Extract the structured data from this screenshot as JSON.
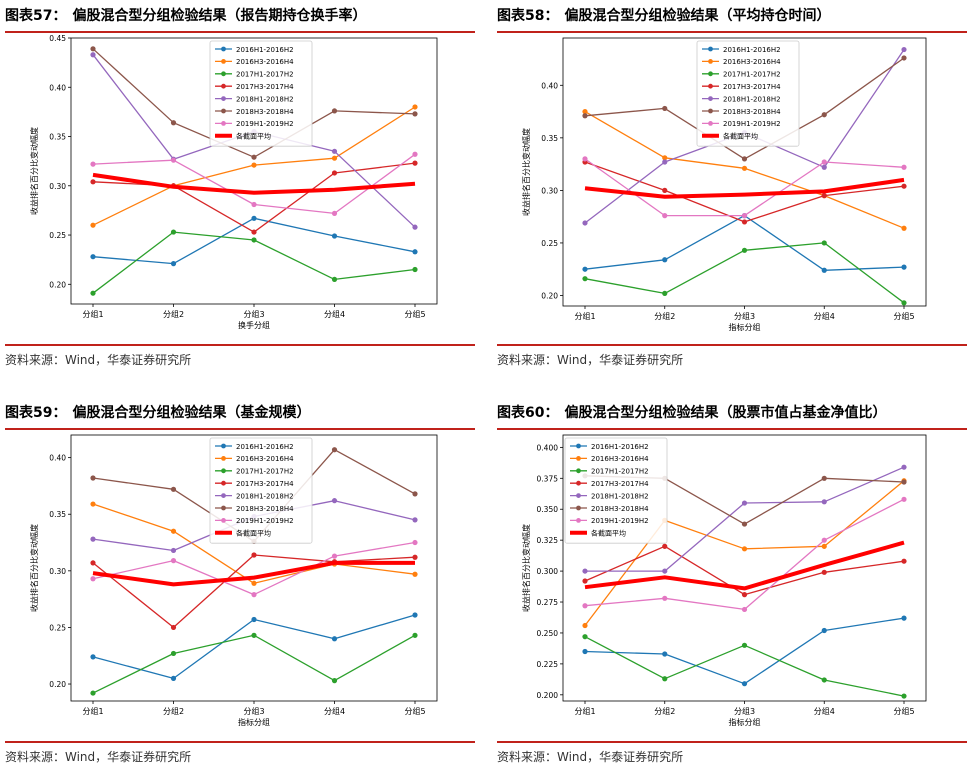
{
  "source_text": "资料来源：Wind，华泰证券研究所",
  "panels": [
    {
      "num": "图表57：",
      "title": "偏股混合型分组检验结果（报告期持仓换手率）",
      "chart_data": {
        "type": "line",
        "categories": [
          "分组1",
          "分组2",
          "分组3",
          "分组4",
          "分组5"
        ],
        "ylabel": "收益排名百分比变动幅度",
        "xlabel": "换手分组",
        "ylim": [
          0.18,
          0.45
        ],
        "yticks": [
          "0.20",
          "0.25",
          "0.30",
          "0.35",
          "0.40",
          "0.45"
        ],
        "legend_position": "top-center",
        "series": [
          {
            "name": "2016H1-2016H2",
            "color": "#1f77b4",
            "values": [
              0.228,
              0.221,
              0.267,
              0.249,
              0.233
            ]
          },
          {
            "name": "2016H3-2016H4",
            "color": "#ff7f0e",
            "values": [
              0.26,
              0.3,
              0.321,
              0.328,
              0.38
            ]
          },
          {
            "name": "2017H1-2017H2",
            "color": "#2ca02c",
            "values": [
              0.191,
              0.253,
              0.245,
              0.205,
              0.215
            ]
          },
          {
            "name": "2017H3-2017H4",
            "color": "#d62728",
            "values": [
              0.304,
              0.3,
              0.253,
              0.313,
              0.323
            ]
          },
          {
            "name": "2018H1-2018H2",
            "color": "#9467bd",
            "values": [
              0.433,
              0.327,
              0.355,
              0.335,
              0.258
            ]
          },
          {
            "name": "2018H3-2018H4",
            "color": "#8c564b",
            "values": [
              0.439,
              0.364,
              0.329,
              0.376,
              0.373
            ]
          },
          {
            "name": "2019H1-2019H2",
            "color": "#e377c2",
            "values": [
              0.322,
              0.326,
              0.281,
              0.272,
              0.332
            ]
          },
          {
            "name": "各截面平均",
            "color": "#ff0000",
            "bold": true,
            "values": [
              0.311,
              0.299,
              0.293,
              0.296,
              0.302
            ]
          }
        ]
      }
    },
    {
      "num": "图表58：",
      "title": "偏股混合型分组检验结果（平均持仓时间）",
      "chart_data": {
        "type": "line",
        "categories": [
          "分组1",
          "分组2",
          "分组3",
          "分组4",
          "分组5"
        ],
        "ylabel": "收益排名百分比变动幅度",
        "xlabel": "指标分组",
        "ylim": [
          0.19,
          0.445
        ],
        "yticks": [
          "0.20",
          "0.25",
          "0.30",
          "0.35",
          "0.40"
        ],
        "legend_position": "top-center",
        "series": [
          {
            "name": "2016H1-2016H2",
            "color": "#1f77b4",
            "values": [
              0.225,
              0.234,
              0.276,
              0.224,
              0.227
            ]
          },
          {
            "name": "2016H3-2016H4",
            "color": "#ff7f0e",
            "values": [
              0.375,
              0.331,
              0.321,
              0.295,
              0.264
            ]
          },
          {
            "name": "2017H1-2017H2",
            "color": "#2ca02c",
            "values": [
              0.216,
              0.202,
              0.243,
              0.25,
              0.193
            ]
          },
          {
            "name": "2017H3-2017H4",
            "color": "#d62728",
            "values": [
              0.327,
              0.3,
              0.27,
              0.295,
              0.304
            ]
          },
          {
            "name": "2018H1-2018H2",
            "color": "#9467bd",
            "values": [
              0.269,
              0.327,
              0.355,
              0.322,
              0.434
            ]
          },
          {
            "name": "2018H3-2018H4",
            "color": "#8c564b",
            "values": [
              0.371,
              0.378,
              0.33,
              0.372,
              0.426
            ]
          },
          {
            "name": "2019H1-2019H2",
            "color": "#e377c2",
            "values": [
              0.33,
              0.276,
              0.276,
              0.327,
              0.322
            ]
          },
          {
            "name": "各截面平均",
            "color": "#ff0000",
            "bold": true,
            "values": [
              0.302,
              0.294,
              0.296,
              0.299,
              0.31
            ]
          }
        ]
      }
    },
    {
      "num": "图表59：",
      "title": "偏股混合型分组检验结果（基金规模）",
      "chart_data": {
        "type": "line",
        "categories": [
          "分组1",
          "分组2",
          "分组3",
          "分组4",
          "分组5"
        ],
        "ylabel": "收益排名百分比变动幅度",
        "xlabel": "指标分组",
        "ylim": [
          0.185,
          0.42
        ],
        "yticks": [
          "0.20",
          "0.25",
          "0.30",
          "0.35",
          "0.40"
        ],
        "legend_position": "top-center",
        "series": [
          {
            "name": "2016H1-2016H2",
            "color": "#1f77b4",
            "values": [
              0.224,
              0.205,
              0.257,
              0.24,
              0.261
            ]
          },
          {
            "name": "2016H3-2016H4",
            "color": "#ff7f0e",
            "values": [
              0.359,
              0.335,
              0.289,
              0.306,
              0.297
            ]
          },
          {
            "name": "2017H1-2017H2",
            "color": "#2ca02c",
            "values": [
              0.192,
              0.227,
              0.243,
              0.203,
              0.243
            ]
          },
          {
            "name": "2017H3-2017H4",
            "color": "#d62728",
            "values": [
              0.307,
              0.25,
              0.314,
              0.308,
              0.312
            ]
          },
          {
            "name": "2018H1-2018H2",
            "color": "#9467bd",
            "values": [
              0.328,
              0.318,
              0.348,
              0.362,
              0.345
            ]
          },
          {
            "name": "2018H3-2018H4",
            "color": "#8c564b",
            "values": [
              0.382,
              0.372,
              0.326,
              0.407,
              0.368
            ]
          },
          {
            "name": "2019H1-2019H2",
            "color": "#e377c2",
            "values": [
              0.293,
              0.309,
              0.279,
              0.313,
              0.325
            ]
          },
          {
            "name": "各截面平均",
            "color": "#ff0000",
            "bold": true,
            "values": [
              0.298,
              0.288,
              0.294,
              0.307,
              0.307
            ]
          }
        ]
      }
    },
    {
      "num": "图表60：",
      "title": "偏股混合型分组检验结果（股票市值占基金净值比）",
      "chart_data": {
        "type": "line",
        "categories": [
          "分组1",
          "分组2",
          "分组3",
          "分组4",
          "分组5"
        ],
        "ylabel": "收益排名百分比变动幅度",
        "xlabel": "指标分组",
        "ylim": [
          0.195,
          0.41
        ],
        "yticks": [
          "0.200",
          "0.225",
          "0.250",
          "0.275",
          "0.300",
          "0.325",
          "0.350",
          "0.375",
          "0.400"
        ],
        "legend_position": "top-left",
        "series": [
          {
            "name": "2016H1-2016H2",
            "color": "#1f77b4",
            "values": [
              0.235,
              0.233,
              0.209,
              0.252,
              0.262
            ]
          },
          {
            "name": "2016H3-2016H4",
            "color": "#ff7f0e",
            "values": [
              0.256,
              0.341,
              0.318,
              0.32,
              0.373
            ]
          },
          {
            "name": "2017H1-2017H2",
            "color": "#2ca02c",
            "values": [
              0.247,
              0.213,
              0.24,
              0.212,
              0.199
            ]
          },
          {
            "name": "2017H3-2017H4",
            "color": "#d62728",
            "values": [
              0.292,
              0.32,
              0.281,
              0.299,
              0.308
            ]
          },
          {
            "name": "2018H1-2018H2",
            "color": "#9467bd",
            "values": [
              0.3,
              0.3,
              0.355,
              0.356,
              0.384
            ]
          },
          {
            "name": "2018H3-2018H4",
            "color": "#8c564b",
            "values": [
              0.377,
              0.375,
              0.338,
              0.375,
              0.372
            ]
          },
          {
            "name": "2019H1-2019H2",
            "color": "#e377c2",
            "values": [
              0.272,
              0.278,
              0.269,
              0.325,
              0.358
            ]
          },
          {
            "name": "各截面平均",
            "color": "#ff0000",
            "bold": true,
            "values": [
              0.287,
              0.295,
              0.286,
              0.305,
              0.323
            ]
          }
        ]
      }
    }
  ]
}
